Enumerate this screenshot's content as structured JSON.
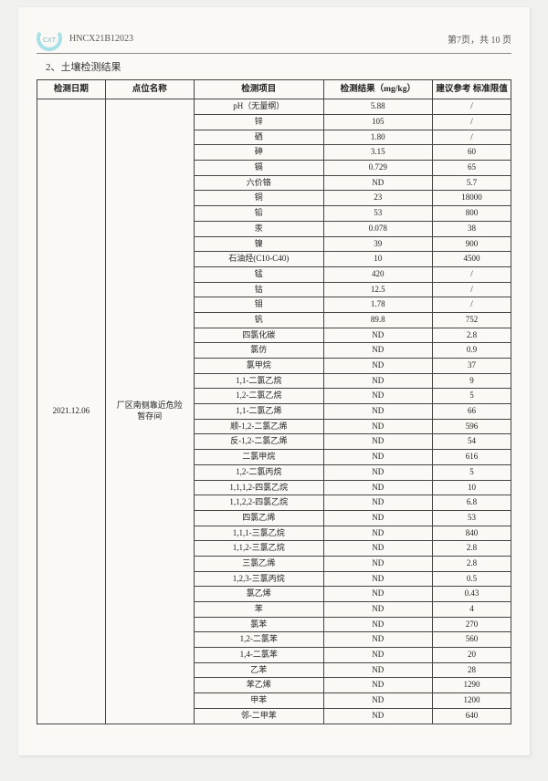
{
  "header": {
    "doc_id": "HNCX21B12023",
    "page_info": "第7页，共 10 页"
  },
  "section_title": "2、土壤检测结果",
  "table": {
    "headers": {
      "date": "检测日期",
      "location": "点位名称",
      "item": "检测项目",
      "result": "检测结果（mg/kg）",
      "reference": "建议参考\n标准限值"
    },
    "date": "2021.12.06",
    "location": "厂区南侧靠近危险\n暂存间",
    "rows": [
      {
        "item": "pH（无量纲）",
        "result": "5.88",
        "ref": "/"
      },
      {
        "item": "锌",
        "result": "105",
        "ref": "/"
      },
      {
        "item": "硒",
        "result": "1.80",
        "ref": "/"
      },
      {
        "item": "砷",
        "result": "3.15",
        "ref": "60"
      },
      {
        "item": "镉",
        "result": "0.729",
        "ref": "65"
      },
      {
        "item": "六价铬",
        "result": "ND",
        "ref": "5.7"
      },
      {
        "item": "铜",
        "result": "23",
        "ref": "18000"
      },
      {
        "item": "铅",
        "result": "53",
        "ref": "800"
      },
      {
        "item": "汞",
        "result": "0.078",
        "ref": "38"
      },
      {
        "item": "镍",
        "result": "39",
        "ref": "900"
      },
      {
        "item": "石油烃(C10-C40)",
        "result": "10",
        "ref": "4500"
      },
      {
        "item": "锰",
        "result": "420",
        "ref": "/"
      },
      {
        "item": "钴",
        "result": "12.5",
        "ref": "/"
      },
      {
        "item": "钼",
        "result": "1.78",
        "ref": "/"
      },
      {
        "item": "钒",
        "result": "89.8",
        "ref": "752"
      },
      {
        "item": "四氯化碳",
        "result": "ND",
        "ref": "2.8"
      },
      {
        "item": "氯仿",
        "result": "ND",
        "ref": "0.9"
      },
      {
        "item": "氯甲烷",
        "result": "ND",
        "ref": "37"
      },
      {
        "item": "1,1-二氯乙烷",
        "result": "ND",
        "ref": "9"
      },
      {
        "item": "1,2-二氯乙烷",
        "result": "ND",
        "ref": "5"
      },
      {
        "item": "1,1-二氯乙烯",
        "result": "ND",
        "ref": "66"
      },
      {
        "item": "顺-1,2-二氯乙烯",
        "result": "ND",
        "ref": "596"
      },
      {
        "item": "反-1,2-二氯乙烯",
        "result": "ND",
        "ref": "54"
      },
      {
        "item": "二氯甲烷",
        "result": "ND",
        "ref": "616"
      },
      {
        "item": "1,2-二氯丙烷",
        "result": "ND",
        "ref": "5"
      },
      {
        "item": "1,1,1,2-四氯乙烷",
        "result": "ND",
        "ref": "10"
      },
      {
        "item": "1,1,2,2-四氯乙烷",
        "result": "ND",
        "ref": "6.8"
      },
      {
        "item": "四氯乙烯",
        "result": "ND",
        "ref": "53"
      },
      {
        "item": "1,1,1-三氯乙烷",
        "result": "ND",
        "ref": "840"
      },
      {
        "item": "1,1,2-三氯乙烷",
        "result": "ND",
        "ref": "2.8"
      },
      {
        "item": "三氯乙烯",
        "result": "ND",
        "ref": "2.8"
      },
      {
        "item": "1,2,3-三氯丙烷",
        "result": "ND",
        "ref": "0.5"
      },
      {
        "item": "氯乙烯",
        "result": "ND",
        "ref": "0.43"
      },
      {
        "item": "苯",
        "result": "ND",
        "ref": "4"
      },
      {
        "item": "氯苯",
        "result": "ND",
        "ref": "270"
      },
      {
        "item": "1,2-二氯苯",
        "result": "ND",
        "ref": "560"
      },
      {
        "item": "1,4-二氯苯",
        "result": "ND",
        "ref": "20"
      },
      {
        "item": "乙苯",
        "result": "ND",
        "ref": "28"
      },
      {
        "item": "苯乙烯",
        "result": "ND",
        "ref": "1290"
      },
      {
        "item": "甲苯",
        "result": "ND",
        "ref": "1200"
      },
      {
        "item": "邻-二甲苯",
        "result": "ND",
        "ref": "640"
      }
    ]
  },
  "colors": {
    "logo_outer": "#a8e0e8",
    "logo_text": "#7bb8c0",
    "border": "#444444",
    "text": "#222222",
    "page_bg": "#faf9f5",
    "body_bg": "#f0f0ee"
  }
}
